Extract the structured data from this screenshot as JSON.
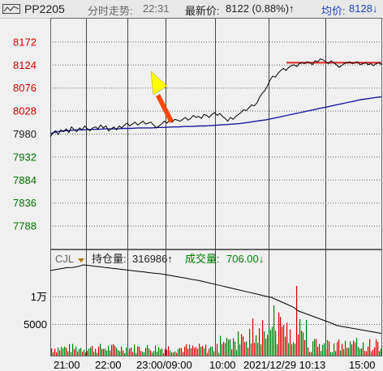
{
  "header": {
    "symbol": "PP2205",
    "time_label": "分时走势:",
    "time_value": "22:31",
    "latest_label": "最新价:",
    "latest_value": "8122 (0.88%)↑",
    "avg_label": "均价:",
    "avg_value": "8128↓"
  },
  "price_axis": {
    "labels": [
      "8172",
      "8124",
      "8076",
      "8028",
      "7980",
      "7932",
      "7884",
      "7836",
      "7788"
    ],
    "values": [
      8172,
      8124,
      8076,
      8028,
      7980,
      7932,
      7884,
      7836,
      7788
    ],
    "up_color": "#d40000",
    "down_color": "#007000"
  },
  "volume_panel": {
    "cjl_label": "CJL",
    "oi_label": "持仓量:",
    "oi_value": "316986↑",
    "vol_label": "成交量:",
    "vol_value": "706.00↓",
    "axis_labels": [
      "1万",
      "5000"
    ],
    "axis_values": [
      10000,
      5000
    ]
  },
  "time_axis": {
    "labels": [
      "21:00",
      "22:00",
      "23:00/09:00",
      "10:00",
      "2021/12/29 10:13",
      "15:00"
    ]
  },
  "icons": {
    "chart_type": "line-chart-icon",
    "pointer": "arrow-annotation-icon"
  },
  "colors": {
    "price_line": "#000000",
    "avg_line": "#1a1aa0",
    "marker_line": "#e02020",
    "arrow_fill": "#ff4500",
    "arrow_head": "#ffff00",
    "vol_up": "#d40000",
    "vol_down": "#008000",
    "oi_line": "#000000"
  },
  "chart_data": {
    "type": "line",
    "price_series": [
      7974,
      7982,
      7986,
      7978,
      7988,
      7984,
      7990,
      7982,
      7994,
      7988,
      7984,
      7992,
      7988,
      7996,
      7990,
      7986,
      7992,
      7994,
      7990,
      7998,
      7992,
      7996,
      7986,
      7990,
      7994,
      7988,
      7996,
      7992,
      7998,
      8002,
      7996,
      8000,
      8004,
      7998,
      8002,
      8006,
      8000,
      8002,
      8004,
      7998,
      7992,
      7996,
      8000,
      8006,
      8002,
      8008,
      8004,
      8010,
      8008,
      8006,
      8010,
      8014,
      8008,
      8012,
      8018,
      8014,
      8016,
      8012,
      8020,
      8018,
      8014,
      8020,
      8024,
      8018,
      8022,
      8016,
      8012,
      8006,
      8014,
      8010,
      8016,
      8020,
      8024,
      8030,
      8028,
      8034,
      8040,
      8038,
      8044,
      8056,
      8064,
      8070,
      8080,
      8092,
      8100,
      8098,
      8106,
      8112,
      8116,
      8112,
      8118,
      8122,
      8124,
      8120,
      8126,
      8128,
      8126,
      8130,
      8128,
      8124,
      8132,
      8130,
      8136,
      8134,
      8130,
      8126,
      8132,
      8128,
      8124,
      8118,
      8122,
      8126,
      8128,
      8130,
      8126,
      8128,
      8130,
      8124,
      8126,
      8128,
      8124,
      8126,
      8122,
      8126,
      8128,
      8124
    ],
    "avg_series": [
      7980,
      7984,
      7986,
      7987,
      7988,
      7988,
      7989,
      7989,
      7990,
      7990,
      7990,
      7991,
      7991,
      7992,
      7992,
      7992,
      7993,
      7993,
      7994,
      7994,
      7995,
      7995,
      7996,
      7996,
      7997,
      7998,
      7999,
      8000,
      8001,
      8003,
      8005,
      8007,
      8009,
      8012,
      8015,
      8018,
      8021,
      8024,
      8027,
      8030,
      8033,
      8036,
      8039,
      8042,
      8045,
      8048,
      8051,
      8053,
      8055,
      8057
    ],
    "marker_price": 8128,
    "ylim": [
      7740,
      8220
    ]
  }
}
